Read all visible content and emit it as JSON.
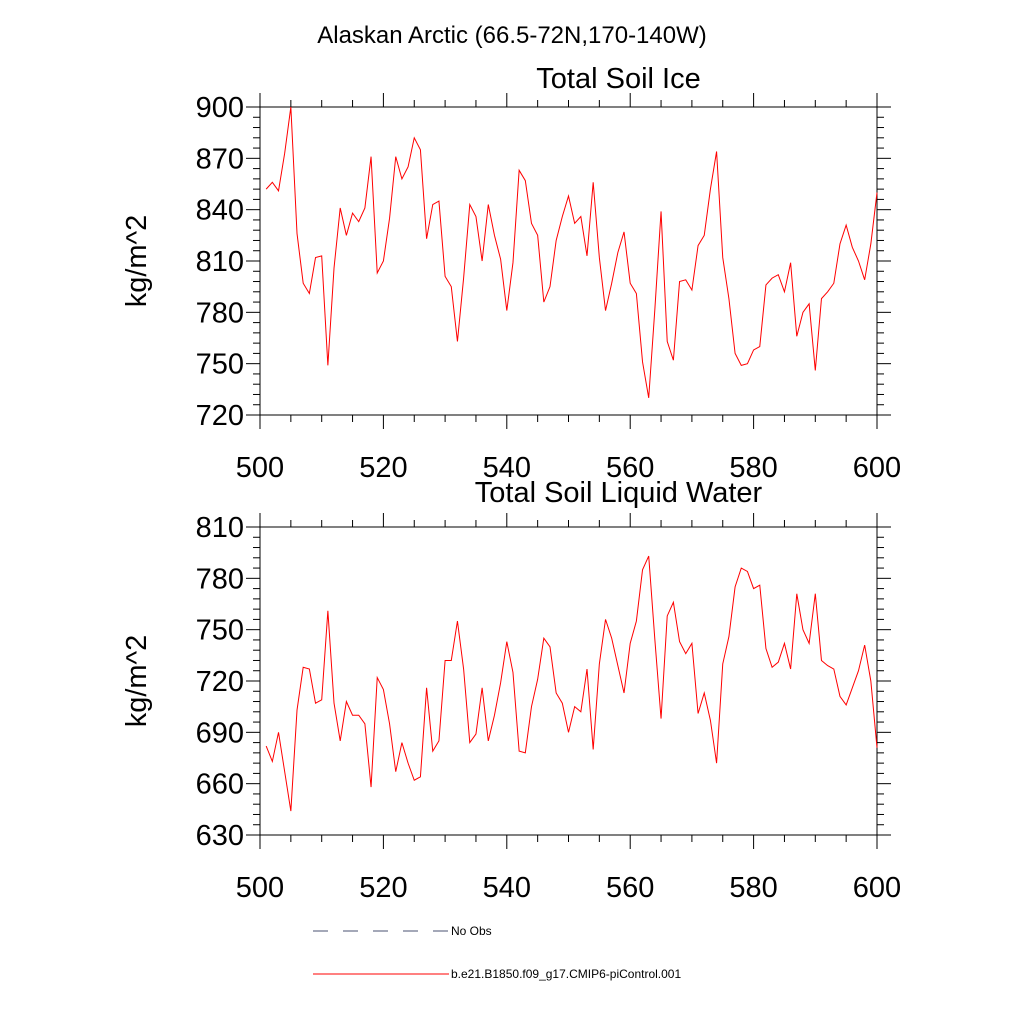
{
  "figure": {
    "suptitle": "Alaskan Arctic (66.5-72N,170-140W)"
  },
  "chart_data": [
    {
      "type": "line",
      "title": "Total Soil Ice",
      "xlabel": "",
      "ylabel": "kg/m^2",
      "xlim": [
        500,
        600
      ],
      "ylim": [
        720,
        900
      ],
      "xticks": [
        500,
        520,
        540,
        560,
        580,
        600
      ],
      "yticks": [
        720,
        750,
        780,
        810,
        840,
        870,
        900
      ],
      "series": [
        {
          "name": "b.e21.B1850.f09_g17.CMIP6-piControl.001",
          "color": "#ff0000",
          "x": [
            501,
            502,
            503,
            504,
            505,
            506,
            507,
            508,
            509,
            510,
            511,
            512,
            513,
            514,
            515,
            516,
            517,
            518,
            519,
            520,
            521,
            522,
            523,
            524,
            525,
            526,
            527,
            528,
            529,
            530,
            531,
            532,
            533,
            534,
            535,
            536,
            537,
            538,
            539,
            540,
            541,
            542,
            543,
            544,
            545,
            546,
            547,
            548,
            549,
            550,
            551,
            552,
            553,
            554,
            555,
            556,
            557,
            558,
            559,
            560,
            561,
            562,
            563,
            564,
            565,
            566,
            567,
            568,
            569,
            570,
            571,
            572,
            573,
            574,
            575,
            576,
            577,
            578,
            579,
            580,
            581,
            582,
            583,
            584,
            585,
            586,
            587,
            588,
            589,
            590,
            591,
            592,
            593,
            594,
            595,
            596,
            597,
            598,
            599,
            600
          ],
          "values": [
            852,
            856,
            851,
            873,
            900,
            826,
            797,
            791,
            812,
            813,
            749,
            806,
            841,
            825,
            838,
            833,
            841,
            871,
            803,
            810,
            835,
            871,
            858,
            865,
            882,
            875,
            823,
            843,
            845,
            801,
            795,
            763,
            800,
            843,
            836,
            810,
            843,
            825,
            811,
            781,
            809,
            863,
            857,
            832,
            825,
            786,
            795,
            822,
            836,
            848,
            832,
            836,
            813,
            856,
            812,
            781,
            797,
            815,
            827,
            797,
            791,
            751,
            730,
            782,
            839,
            763,
            752,
            798,
            799,
            793,
            819,
            825,
            852,
            874,
            812,
            788,
            756,
            749,
            750,
            758,
            760,
            796,
            800,
            802,
            792,
            809,
            766,
            780,
            785,
            746,
            788,
            792,
            797,
            820,
            831,
            818,
            810,
            799,
            820,
            850
          ]
        }
      ]
    },
    {
      "type": "line",
      "title": "Total Soil Liquid Water",
      "xlabel": "",
      "ylabel": "kg/m^2",
      "xlim": [
        500,
        600
      ],
      "ylim": [
        630,
        810
      ],
      "xticks": [
        500,
        520,
        540,
        560,
        580,
        600
      ],
      "yticks": [
        630,
        660,
        690,
        720,
        750,
        780,
        810
      ],
      "series": [
        {
          "name": "b.e21.B1850.f09_g17.CMIP6-piControl.001",
          "color": "#ff0000",
          "x": [
            501,
            502,
            503,
            504,
            505,
            506,
            507,
            508,
            509,
            510,
            511,
            512,
            513,
            514,
            515,
            516,
            517,
            518,
            519,
            520,
            521,
            522,
            523,
            524,
            525,
            526,
            527,
            528,
            529,
            530,
            531,
            532,
            533,
            534,
            535,
            536,
            537,
            538,
            539,
            540,
            541,
            542,
            543,
            544,
            545,
            546,
            547,
            548,
            549,
            550,
            551,
            552,
            553,
            554,
            555,
            556,
            557,
            558,
            559,
            560,
            561,
            562,
            563,
            564,
            565,
            566,
            567,
            568,
            569,
            570,
            571,
            572,
            573,
            574,
            575,
            576,
            577,
            578,
            579,
            580,
            581,
            582,
            583,
            584,
            585,
            586,
            587,
            588,
            589,
            590,
            591,
            592,
            593,
            594,
            595,
            596,
            597,
            598,
            599,
            600
          ],
          "values": [
            682,
            673,
            690,
            667,
            644,
            703,
            728,
            727,
            707,
            709,
            761,
            707,
            685,
            708,
            700,
            700,
            695,
            658,
            722,
            715,
            695,
            667,
            684,
            672,
            662,
            664,
            716,
            679,
            685,
            732,
            732,
            755,
            727,
            684,
            689,
            716,
            685,
            700,
            719,
            743,
            725,
            679,
            678,
            705,
            721,
            745,
            740,
            713,
            707,
            690,
            705,
            702,
            727,
            680,
            730,
            756,
            745,
            729,
            713,
            742,
            755,
            785,
            793,
            744,
            698,
            758,
            766,
            743,
            736,
            742,
            701,
            713,
            697,
            672,
            730,
            746,
            775,
            786,
            784,
            774,
            776,
            739,
            728,
            731,
            742,
            727,
            771,
            750,
            742,
            771,
            732,
            729,
            727,
            711,
            706,
            716,
            726,
            741,
            720,
            681
          ]
        }
      ]
    }
  ],
  "legend": {
    "items": [
      {
        "label": "No Obs",
        "style": "dashed",
        "color": "#4a5270"
      },
      {
        "label": "b.e21.B1850.f09_g17.CMIP6-piControl.001",
        "style": "solid",
        "color": "#ff0000"
      }
    ]
  }
}
